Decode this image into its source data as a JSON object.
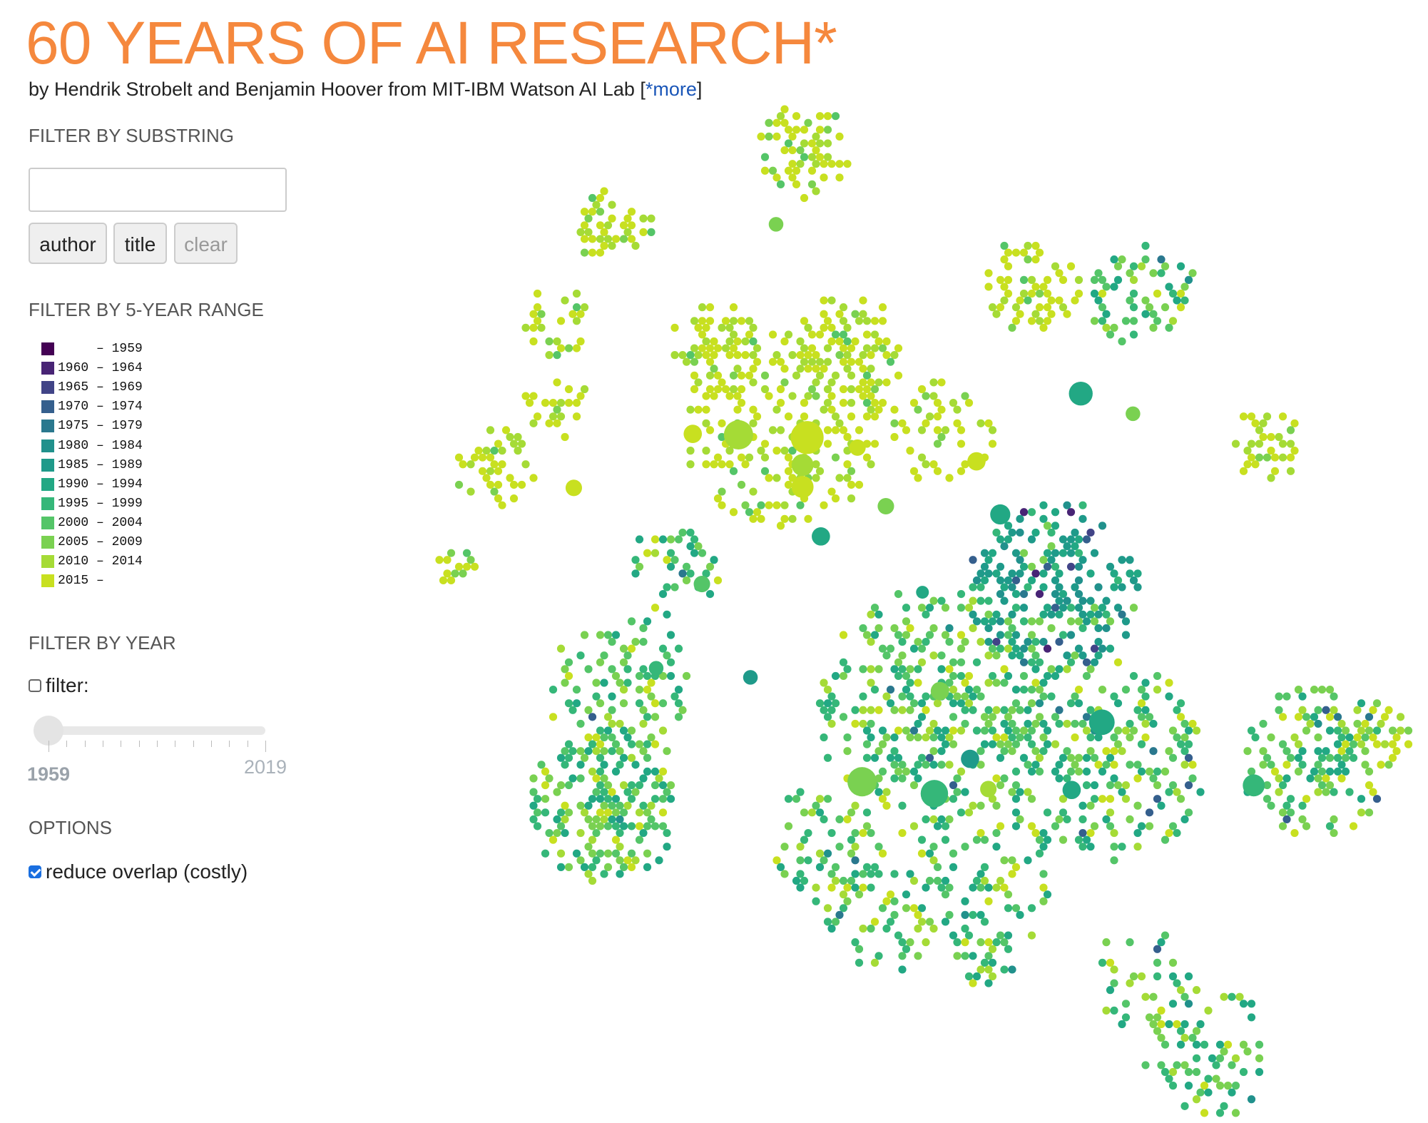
{
  "header": {
    "title": "60 YEARS OF AI RESEARCH*",
    "byline": "by Hendrik Strobelt and Benjamin Hoover from MIT-IBM Watson AI Lab [",
    "more_link": "*more",
    "byline_end": "]"
  },
  "substring_filter": {
    "heading": "FILTER BY SUBSTRING",
    "buttons": [
      "author",
      "title",
      "clear"
    ]
  },
  "range_filter": {
    "heading": "FILTER BY 5-YEAR RANGE",
    "items": [
      {
        "label": "     – 1959",
        "color": "#440154"
      },
      {
        "label": "1960 – 1964",
        "color": "#482475"
      },
      {
        "label": "1965 – 1969",
        "color": "#414487"
      },
      {
        "label": "1970 – 1974",
        "color": "#355f8d"
      },
      {
        "label": "1975 – 1979",
        "color": "#2a788e"
      },
      {
        "label": "1980 – 1984",
        "color": "#21918c"
      },
      {
        "label": "1985 – 1989",
        "color": "#1f9a8a"
      },
      {
        "label": "1990 – 1994",
        "color": "#22a884"
      },
      {
        "label": "1995 – 1999",
        "color": "#35b779"
      },
      {
        "label": "2000 – 2004",
        "color": "#54c568"
      },
      {
        "label": "2005 – 2009",
        "color": "#7ad151"
      },
      {
        "label": "2010 – 2014",
        "color": "#a5db36"
      },
      {
        "label": "2015 –",
        "color": "#c8e020"
      }
    ]
  },
  "year_filter": {
    "heading": "FILTER BY YEAR",
    "checkbox_label": "filter:",
    "checked": false,
    "slider": {
      "min": 1959,
      "max": 2019,
      "value": 1959
    }
  },
  "options": {
    "heading": "OPTIONS",
    "checkbox_label": "reduce overlap (costly)",
    "checked": true
  }
}
